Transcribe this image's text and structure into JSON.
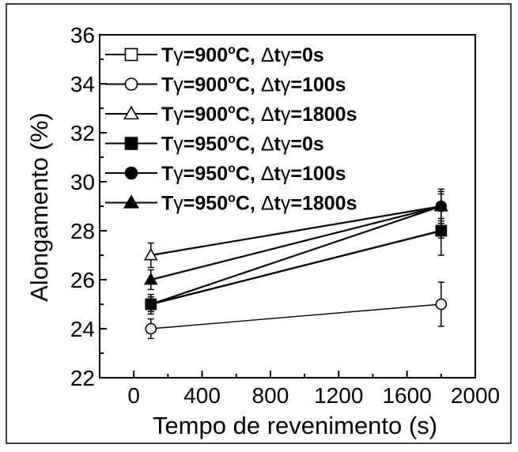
{
  "chart_data": {
    "type": "scatter",
    "xlabel": "Tempo de revenimento (s)",
    "ylabel": "Alongamento (%)",
    "xlim": [
      -200,
      2000
    ],
    "ylim": [
      22,
      36
    ],
    "xticks": [
      0,
      400,
      800,
      1200,
      1600,
      2000
    ],
    "yticks": [
      22,
      24,
      26,
      28,
      30,
      32,
      34,
      36
    ],
    "grid": false,
    "legend_position": "top-left",
    "series": [
      {
        "name": "Tγ=900°C, Δtγ=0s",
        "marker": "square",
        "filled": false,
        "x": [
          100,
          1800
        ],
        "y": [
          25,
          28
        ],
        "err": [
          0.3,
          0.3
        ],
        "legend_text": [
          "T",
          "γ",
          "=900",
          "o",
          "C, ",
          "Δ",
          "t",
          "γ",
          "=0s"
        ]
      },
      {
        "name": "Tγ=900°C, Δtγ=100s",
        "marker": "circle",
        "filled": false,
        "x": [
          100,
          1800
        ],
        "y": [
          24,
          25
        ],
        "err": [
          0.4,
          0.9
        ],
        "legend_text": [
          "T",
          "γ",
          "=900",
          "o",
          "C, ",
          "Δ",
          "t",
          "γ",
          "=100s"
        ]
      },
      {
        "name": "Tγ=900°C, Δtγ=1800s",
        "marker": "triangle",
        "filled": false,
        "x": [
          100,
          1800
        ],
        "y": [
          27,
          29
        ],
        "err": [
          0.5,
          0.5
        ],
        "legend_text": [
          "T",
          "γ",
          "=900",
          "o",
          "C, ",
          "Δ",
          "t",
          "γ",
          "=1800s"
        ]
      },
      {
        "name": "Tγ=950°C, Δtγ=0s",
        "marker": "square",
        "filled": true,
        "x": [
          100,
          1800
        ],
        "y": [
          25,
          28
        ],
        "err": [
          0.4,
          1.0
        ],
        "legend_text": [
          "T",
          "γ",
          "=950",
          "o",
          "C, ",
          "Δ",
          "t",
          "γ",
          "=0s"
        ]
      },
      {
        "name": "Tγ=950°C, Δtγ=100s",
        "marker": "circle",
        "filled": true,
        "x": [
          100,
          1800
        ],
        "y": [
          25,
          29
        ],
        "err": [
          0.3,
          0.6
        ],
        "legend_text": [
          "T",
          "γ",
          "=950",
          "o",
          "C, ",
          "Δ",
          "t",
          "γ",
          "=100s"
        ]
      },
      {
        "name": "Tγ=950°C, Δtγ=1800s",
        "marker": "triangle",
        "filled": true,
        "x": [
          100,
          1800
        ],
        "y": [
          26,
          29
        ],
        "err": [
          0.4,
          0.7
        ],
        "legend_text": [
          "T",
          "γ",
          "=950",
          "o",
          "C, ",
          "Δ",
          "t",
          "γ",
          "=1800s"
        ]
      }
    ],
    "colors": {
      "axis": "#000000",
      "marker": "#000000",
      "background": "#ffffff"
    }
  }
}
